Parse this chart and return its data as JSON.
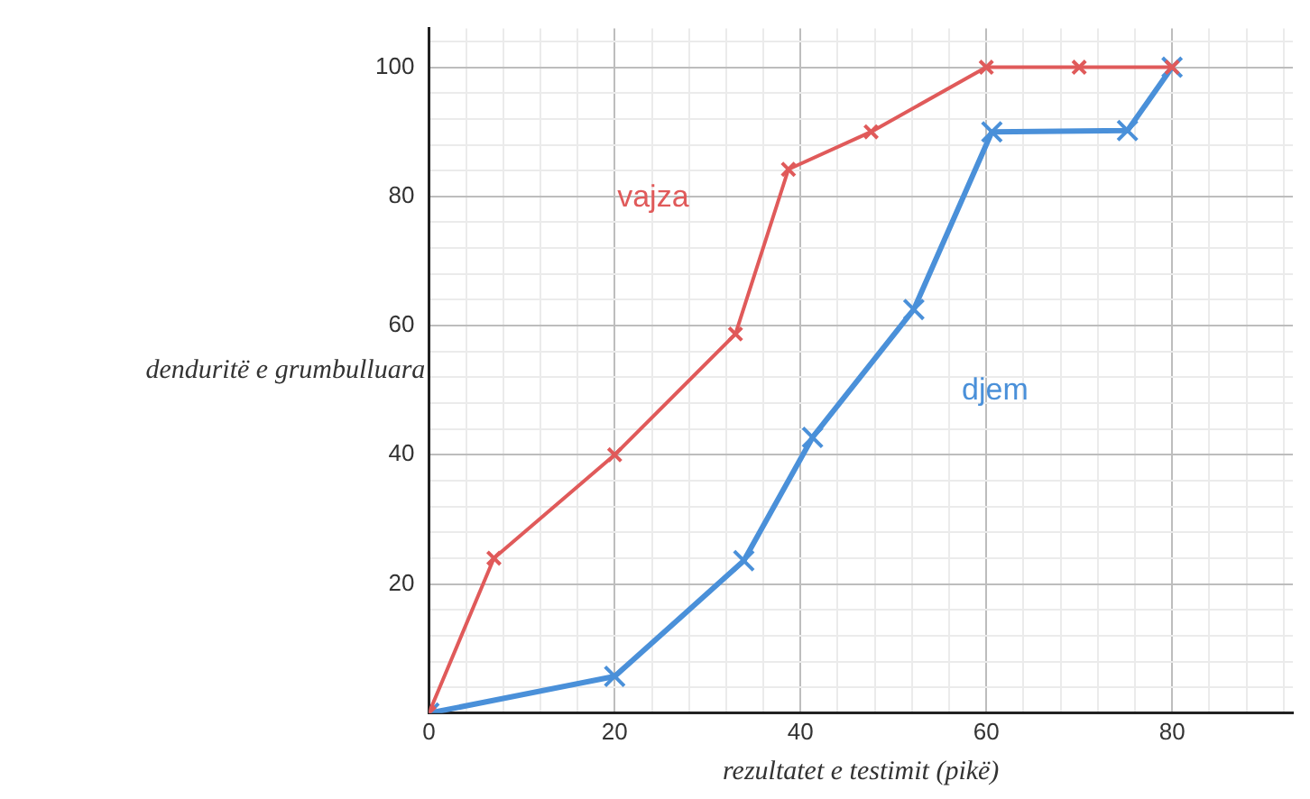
{
  "chart_data": {
    "type": "line",
    "xlabel": "rezultatet e testimit (pikë)",
    "ylabel": "denduritë e grumbulluara",
    "xlim": [
      0,
      93
    ],
    "ylim": [
      0,
      106
    ],
    "xticks": [
      0,
      {
        "value": 4,
        "label": null
      },
      {
        "value": 8,
        "label": null
      },
      {
        "value": 12,
        "label": null
      },
      {
        "value": 16,
        "label": null
      },
      20,
      {
        "value": 24,
        "label": null
      },
      {
        "value": 28,
        "label": null
      },
      {
        "value": 32,
        "label": null
      },
      {
        "value": 36,
        "label": null
      },
      40,
      {
        "value": 44,
        "label": null
      },
      {
        "value": 48,
        "label": null
      },
      {
        "value": 52,
        "label": null
      },
      {
        "value": 56,
        "label": null
      },
      60,
      {
        "value": 64,
        "label": null
      },
      {
        "value": 68,
        "label": null
      },
      {
        "value": 72,
        "label": null
      },
      {
        "value": 76,
        "label": null
      },
      80,
      {
        "value": 84,
        "label": null
      },
      {
        "value": 88,
        "label": null
      },
      {
        "value": 92,
        "label": null
      }
    ],
    "yticks": [
      {
        "value": 0,
        "label": null
      },
      {
        "value": 4,
        "label": null
      },
      {
        "value": 8,
        "label": null
      },
      {
        "value": 12,
        "label": null
      },
      {
        "value": 16,
        "label": null
      },
      20,
      {
        "value": 24,
        "label": null
      },
      {
        "value": 28,
        "label": null
      },
      {
        "value": 32,
        "label": null
      },
      {
        "value": 36,
        "label": null
      },
      40,
      {
        "value": 44,
        "label": null
      },
      {
        "value": 48,
        "label": null
      },
      {
        "value": 52,
        "label": null
      },
      {
        "value": 56,
        "label": null
      },
      60,
      {
        "value": 64,
        "label": null
      },
      {
        "value": 68,
        "label": null
      },
      {
        "value": 72,
        "label": null
      },
      {
        "value": 76,
        "label": null
      },
      80,
      {
        "value": 84,
        "label": null
      },
      {
        "value": 88,
        "label": null
      },
      {
        "value": 92,
        "label": null
      },
      {
        "value": 96,
        "label": null
      },
      100,
      {
        "value": 104,
        "label": null
      }
    ],
    "grid": true,
    "legend": false,
    "marker": "cross",
    "line_style": "solid",
    "series": [
      {
        "name": "vajza",
        "color": "#e05a5a",
        "x": [
          0,
          7,
          20,
          33,
          38.7,
          47.6,
          60,
          70,
          80
        ],
        "values": [
          0,
          24,
          40,
          58.7,
          84.2,
          90,
          100,
          100,
          100
        ]
      },
      {
        "name": "djem",
        "color": "#4a90d9",
        "x": [
          0,
          20,
          33.9,
          41.3,
          52.2,
          60.6,
          75.2,
          80
        ],
        "values": [
          0,
          5.7,
          23.6,
          42.7,
          62.5,
          90,
          90.2,
          100
        ]
      }
    ]
  }
}
